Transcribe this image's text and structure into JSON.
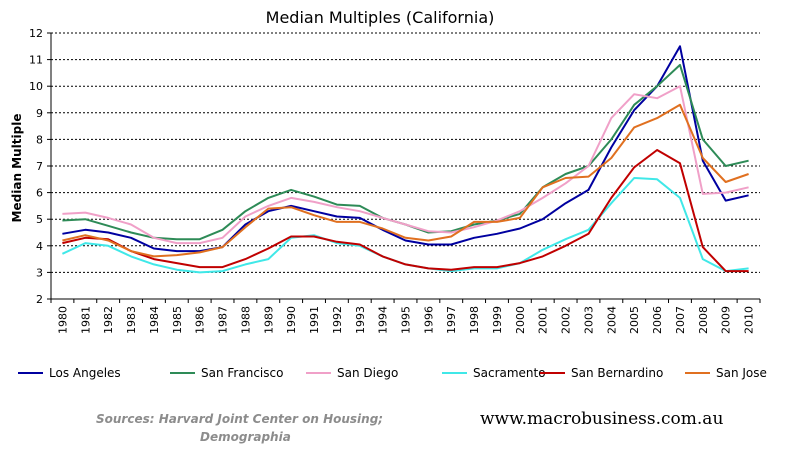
{
  "chart_data": {
    "type": "line",
    "title": "Median Multiples (California)",
    "xlabel": "",
    "ylabel": "Median Multiple",
    "ylim": [
      2,
      12
    ],
    "yticks": [
      2,
      3,
      4,
      5,
      6,
      7,
      8,
      9,
      10,
      11,
      12
    ],
    "grid": true,
    "legend_position": "bottom",
    "x": [
      "1980",
      "1981",
      "1982",
      "1983",
      "1984",
      "1985",
      "1986",
      "1987",
      "1988",
      "1989",
      "1990",
      "1991",
      "1992",
      "1993",
      "1994",
      "1995",
      "1996",
      "1997",
      "1998",
      "1999",
      "2000",
      "2001",
      "2002",
      "2003",
      "2004",
      "2005",
      "2006",
      "2007",
      "2008",
      "2009",
      "2010"
    ],
    "series": [
      {
        "name": "Los Angeles",
        "color": "#0000a0",
        "values": [
          4.45,
          4.6,
          4.5,
          4.3,
          3.9,
          3.8,
          3.8,
          3.95,
          4.8,
          5.3,
          5.5,
          5.3,
          5.1,
          5.05,
          4.6,
          4.2,
          4.05,
          4.05,
          4.3,
          4.45,
          4.65,
          5.0,
          5.6,
          6.1,
          7.7,
          9.1,
          10.0,
          11.5,
          7.2,
          5.7,
          5.9
        ]
      },
      {
        "name": "San Francisco",
        "color": "#2e8b57",
        "values": [
          4.95,
          5.0,
          4.75,
          4.5,
          4.3,
          4.25,
          4.25,
          4.6,
          5.3,
          5.8,
          6.1,
          5.85,
          5.55,
          5.5,
          5.05,
          4.8,
          4.5,
          4.55,
          4.8,
          4.95,
          5.2,
          6.2,
          6.7,
          7.0,
          8.0,
          9.3,
          10.0,
          10.8,
          8.0,
          7.0,
          7.2
        ]
      },
      {
        "name": "San Diego",
        "color": "#f0a0c8",
        "values": [
          5.2,
          5.25,
          5.05,
          4.8,
          4.3,
          4.1,
          4.1,
          4.3,
          5.1,
          5.5,
          5.8,
          5.65,
          5.45,
          5.3,
          5.05,
          4.8,
          4.55,
          4.5,
          4.7,
          4.95,
          5.3,
          5.8,
          6.35,
          7.0,
          8.8,
          9.7,
          9.55,
          10.0,
          5.95,
          6.0,
          6.2
        ]
      },
      {
        "name": "Sacramento",
        "color": "#40e8e8",
        "values": [
          3.7,
          4.1,
          4.0,
          3.6,
          3.3,
          3.1,
          3.0,
          3.05,
          3.3,
          3.5,
          4.3,
          4.4,
          4.1,
          4.0,
          3.6,
          3.3,
          3.15,
          3.05,
          3.15,
          3.15,
          3.35,
          3.85,
          4.25,
          4.6,
          5.6,
          6.55,
          6.5,
          5.8,
          3.5,
          3.05,
          3.15
        ]
      },
      {
        "name": "San Bernardino",
        "color": "#c00000",
        "values": [
          4.1,
          4.3,
          4.25,
          3.8,
          3.5,
          3.35,
          3.2,
          3.2,
          3.5,
          3.9,
          4.35,
          4.35,
          4.15,
          4.05,
          3.6,
          3.3,
          3.15,
          3.1,
          3.2,
          3.2,
          3.35,
          3.6,
          4.0,
          4.45,
          5.8,
          6.95,
          7.6,
          7.1,
          3.95,
          3.05,
          3.05
        ]
      },
      {
        "name": "San Jose",
        "color": "#e07020",
        "values": [
          4.2,
          4.4,
          4.2,
          3.8,
          3.6,
          3.65,
          3.75,
          3.95,
          4.7,
          5.4,
          5.45,
          5.15,
          4.9,
          4.9,
          4.65,
          4.3,
          4.2,
          4.35,
          4.9,
          4.9,
          5.05,
          6.2,
          6.55,
          6.6,
          7.3,
          8.45,
          8.8,
          9.3,
          7.3,
          6.4,
          6.7
        ]
      }
    ]
  },
  "sources": {
    "line1": "Sources: Harvard Joint Center on Housing;",
    "line2": "Demographia"
  },
  "website": "www.macrobusiness.com.au"
}
